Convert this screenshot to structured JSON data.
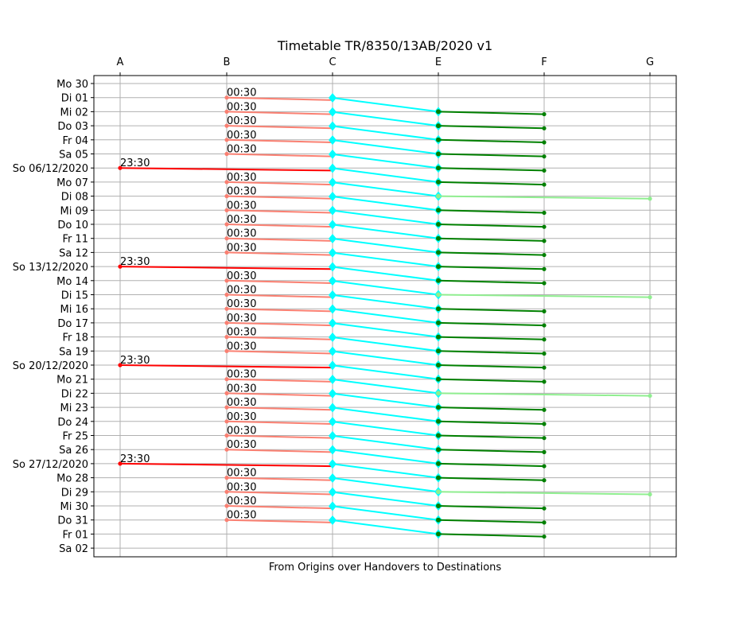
{
  "chart_data": {
    "type": "line",
    "title": "Timetable TR/8350/13AB/2020 v1",
    "xlabel": "From Origins over Handovers to Destinations",
    "ylabel": "",
    "x_categories": [
      "A",
      "B",
      "C",
      "E",
      "F",
      "G"
    ],
    "y_labels": [
      "Mo 30",
      "Di 01",
      "Mi 02",
      "Do 03",
      "Fr 04",
      "Sa 05",
      "So 06/12/2020",
      "Mo 07",
      "Di 08",
      "Mi 09",
      "Do 10",
      "Fr 11",
      "Sa 12",
      "So 13/12/2020",
      "Mo 14",
      "Di 15",
      "Mi 16",
      "Do 17",
      "Fr 18",
      "Sa 19",
      "So 20/12/2020",
      "Mo 21",
      "Di 22",
      "Mi 23",
      "Do 24",
      "Fr 25",
      "Sa 26",
      "So 27/12/2020",
      "Mo 28",
      "Di 29",
      "Mi 30",
      "Do 31",
      "Fr 01",
      "Sa 02"
    ],
    "grid": true,
    "colors": {
      "origin_a": "#ff0000",
      "origin_b": "#fa8072",
      "handover": "#00ffff",
      "dest_f": "#008000",
      "dest_g": "#90ee90",
      "grid": "#b0b0b0"
    },
    "series": [
      {
        "origin": "B",
        "label": "00:30",
        "start": 1,
        "destination": "F"
      },
      {
        "origin": "B",
        "label": "00:30",
        "start": 2,
        "destination": "F"
      },
      {
        "origin": "B",
        "label": "00:30",
        "start": 3,
        "destination": "F"
      },
      {
        "origin": "B",
        "label": "00:30",
        "start": 4,
        "destination": "F"
      },
      {
        "origin": "B",
        "label": "00:30",
        "start": 5,
        "destination": "F"
      },
      {
        "origin": "A",
        "label": "23:30",
        "start": 6,
        "destination": "F"
      },
      {
        "origin": "B",
        "label": "00:30",
        "start": 7,
        "destination": "G"
      },
      {
        "origin": "B",
        "label": "00:30",
        "start": 8,
        "destination": "F"
      },
      {
        "origin": "B",
        "label": "00:30",
        "start": 9,
        "destination": "F"
      },
      {
        "origin": "B",
        "label": "00:30",
        "start": 10,
        "destination": "F"
      },
      {
        "origin": "B",
        "label": "00:30",
        "start": 11,
        "destination": "F"
      },
      {
        "origin": "B",
        "label": "00:30",
        "start": 12,
        "destination": "F"
      },
      {
        "origin": "A",
        "label": "23:30",
        "start": 13,
        "destination": "F"
      },
      {
        "origin": "B",
        "label": "00:30",
        "start": 14,
        "destination": "G"
      },
      {
        "origin": "B",
        "label": "00:30",
        "start": 15,
        "destination": "F"
      },
      {
        "origin": "B",
        "label": "00:30",
        "start": 16,
        "destination": "F"
      },
      {
        "origin": "B",
        "label": "00:30",
        "start": 17,
        "destination": "F"
      },
      {
        "origin": "B",
        "label": "00:30",
        "start": 18,
        "destination": "F"
      },
      {
        "origin": "B",
        "label": "00:30",
        "start": 19,
        "destination": "F"
      },
      {
        "origin": "A",
        "label": "23:30",
        "start": 20,
        "destination": "F"
      },
      {
        "origin": "B",
        "label": "00:30",
        "start": 21,
        "destination": "G"
      },
      {
        "origin": "B",
        "label": "00:30",
        "start": 22,
        "destination": "F"
      },
      {
        "origin": "B",
        "label": "00:30",
        "start": 23,
        "destination": "F"
      },
      {
        "origin": "B",
        "label": "00:30",
        "start": 24,
        "destination": "F"
      },
      {
        "origin": "B",
        "label": "00:30",
        "start": 25,
        "destination": "F"
      },
      {
        "origin": "B",
        "label": "00:30",
        "start": 26,
        "destination": "F"
      },
      {
        "origin": "A",
        "label": "23:30",
        "start": 27,
        "destination": "F"
      },
      {
        "origin": "B",
        "label": "00:30",
        "start": 28,
        "destination": "G"
      },
      {
        "origin": "B",
        "label": "00:30",
        "start": 29,
        "destination": "F"
      },
      {
        "origin": "B",
        "label": "00:30",
        "start": 30,
        "destination": "F"
      },
      {
        "origin": "B",
        "label": "00:30",
        "start": 31,
        "destination": "F"
      }
    ]
  }
}
